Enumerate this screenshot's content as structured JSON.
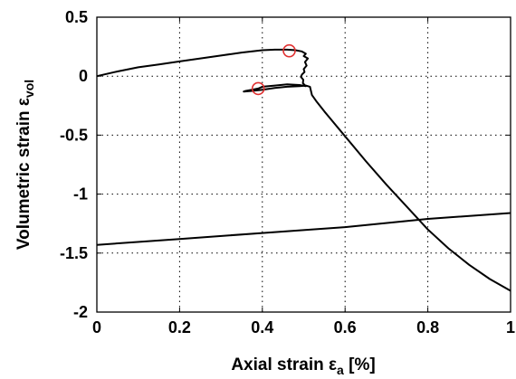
{
  "chart_data": {
    "type": "line",
    "title": "",
    "xlabel": {
      "main": "Axial strain ε",
      "sub": "a",
      "tail": " [%]"
    },
    "ylabel": {
      "main": "Volumetric strain ε",
      "sub": "vol"
    },
    "xlim": [
      0,
      1
    ],
    "ylim": [
      -2,
      0.5
    ],
    "xticks": [
      0,
      0.2,
      0.4,
      0.6,
      0.8,
      1
    ],
    "xtick_labels": [
      "0",
      "0.2",
      "0.4",
      "0.6",
      "0.8",
      "1"
    ],
    "yticks": [
      0.5,
      0,
      -0.5,
      -1,
      -1.5,
      -2
    ],
    "ytick_labels": [
      "0.5",
      "0",
      "-0.5",
      "-1",
      "-1.5",
      "-2"
    ],
    "grid": true,
    "line_color": "#000000",
    "marker_color": "#e03030",
    "series": [
      {
        "points": [
          [
            0,
            0
          ],
          [
            0.05,
            0.04
          ],
          [
            0.1,
            0.075
          ],
          [
            0.15,
            0.1
          ],
          [
            0.2,
            0.125
          ],
          [
            0.25,
            0.15
          ],
          [
            0.3,
            0.175
          ],
          [
            0.35,
            0.2
          ],
          [
            0.4,
            0.22
          ],
          [
            0.43,
            0.225
          ],
          [
            0.46,
            0.225
          ],
          [
            0.48,
            0.22
          ],
          [
            0.495,
            0.21
          ],
          [
            0.505,
            0.19
          ],
          [
            0.5,
            0.17
          ],
          [
            0.51,
            0.15
          ],
          [
            0.503,
            0.12
          ],
          [
            0.507,
            0.09
          ],
          [
            0.5,
            0.06
          ],
          [
            0.502,
            0.035
          ],
          [
            0.496,
            0.015
          ],
          [
            0.493,
            -0.005
          ],
          [
            0.499,
            -0.03
          ],
          [
            0.498,
            -0.06
          ],
          [
            0.505,
            -0.085
          ],
          [
            0.49,
            -0.075
          ],
          [
            0.46,
            -0.07
          ],
          [
            0.43,
            -0.08
          ],
          [
            0.4,
            -0.09
          ],
          [
            0.39,
            -0.105
          ],
          [
            0.375,
            -0.115
          ],
          [
            0.36,
            -0.125
          ],
          [
            0.355,
            -0.13
          ],
          [
            0.375,
            -0.125
          ],
          [
            0.4,
            -0.115
          ],
          [
            0.43,
            -0.1
          ],
          [
            0.46,
            -0.09
          ],
          [
            0.49,
            -0.085
          ],
          [
            0.505,
            -0.08
          ],
          [
            0.515,
            -0.09
          ],
          [
            0.52,
            -0.16
          ],
          [
            0.53,
            -0.21
          ],
          [
            0.55,
            -0.3
          ],
          [
            0.6,
            -0.51
          ],
          [
            0.65,
            -0.72
          ],
          [
            0.7,
            -0.92
          ],
          [
            0.75,
            -1.11
          ],
          [
            0.8,
            -1.3
          ],
          [
            0.85,
            -1.46
          ],
          [
            0.9,
            -1.6
          ],
          [
            0.95,
            -1.72
          ],
          [
            1,
            -1.82
          ]
        ]
      },
      {
        "points": [
          [
            0,
            -1.43
          ],
          [
            0.2,
            -1.38
          ],
          [
            0.4,
            -1.33
          ],
          [
            0.6,
            -1.28
          ],
          [
            0.8,
            -1.21
          ],
          [
            1,
            -1.16
          ]
        ]
      }
    ],
    "markers": [
      {
        "x": 0.465,
        "y": 0.215
      },
      {
        "x": 0.39,
        "y": -0.105
      }
    ]
  }
}
